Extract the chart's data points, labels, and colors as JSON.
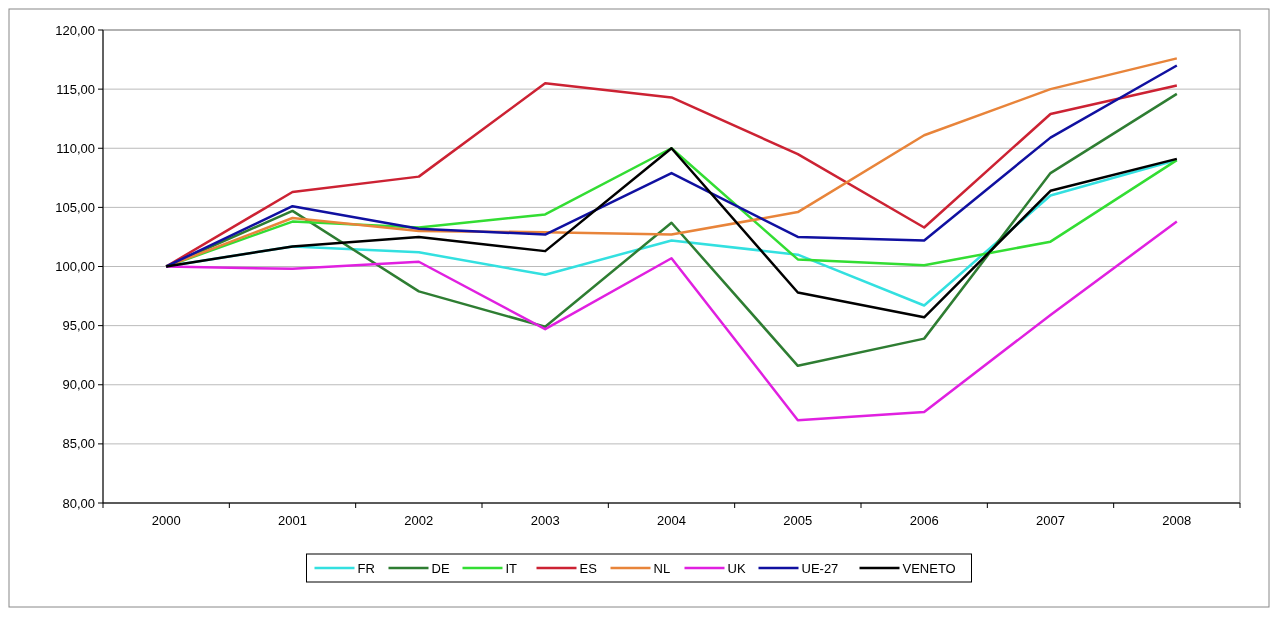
{
  "chart_data": {
    "type": "line",
    "categories": [
      "2000",
      "2001",
      "2002",
      "2003",
      "2004",
      "2005",
      "2006",
      "2007",
      "2008"
    ],
    "series": [
      {
        "name": "FR",
        "color": "#33e0e0",
        "values": [
          100,
          101.7,
          101.2,
          99.3,
          102.2,
          101.0,
          96.7,
          106.0,
          109.0
        ]
      },
      {
        "name": "DE",
        "color": "#2e7d32",
        "values": [
          100,
          104.7,
          97.9,
          94.9,
          103.7,
          91.6,
          93.9,
          107.9,
          114.6
        ]
      },
      {
        "name": "IT",
        "color": "#33dd33",
        "values": [
          100,
          103.8,
          103.3,
          104.4,
          110.0,
          100.6,
          100.1,
          102.1,
          109.0
        ]
      },
      {
        "name": "ES",
        "color": "#cc2233",
        "values": [
          100,
          106.3,
          107.6,
          115.5,
          114.3,
          109.5,
          103.3,
          112.9,
          115.3
        ]
      },
      {
        "name": "NL",
        "color": "#e8843a",
        "values": [
          100,
          104.1,
          103.0,
          102.9,
          102.7,
          104.6,
          111.1,
          115.0,
          117.6
        ]
      },
      {
        "name": "UK",
        "color": "#e020e0",
        "values": [
          100,
          99.8,
          100.4,
          94.7,
          100.7,
          87.0,
          87.7,
          95.9,
          103.8
        ]
      },
      {
        "name": "UE-27",
        "color": "#1010a0",
        "values": [
          100,
          105.1,
          103.2,
          102.7,
          107.9,
          102.5,
          102.2,
          110.9,
          117.0
        ]
      },
      {
        "name": "VENETO",
        "color": "#000000",
        "values": [
          100,
          101.7,
          102.5,
          101.3,
          110.0,
          97.8,
          95.7,
          106.4,
          109.1
        ]
      }
    ],
    "ylim": [
      80,
      120
    ],
    "yticks": [
      {
        "value": 80,
        "label": "80,00"
      },
      {
        "value": 85,
        "label": "85,00"
      },
      {
        "value": 90,
        "label": "90,00"
      },
      {
        "value": 95,
        "label": "95,00"
      },
      {
        "value": 100,
        "label": "100,00"
      },
      {
        "value": 105,
        "label": "105,00"
      },
      {
        "value": 110,
        "label": "110,00"
      },
      {
        "value": 115,
        "label": "115,00"
      },
      {
        "value": 120,
        "label": "120,00"
      }
    ],
    "grid": "y",
    "legend": "bottom",
    "marker": "none",
    "line_style": "solid"
  }
}
